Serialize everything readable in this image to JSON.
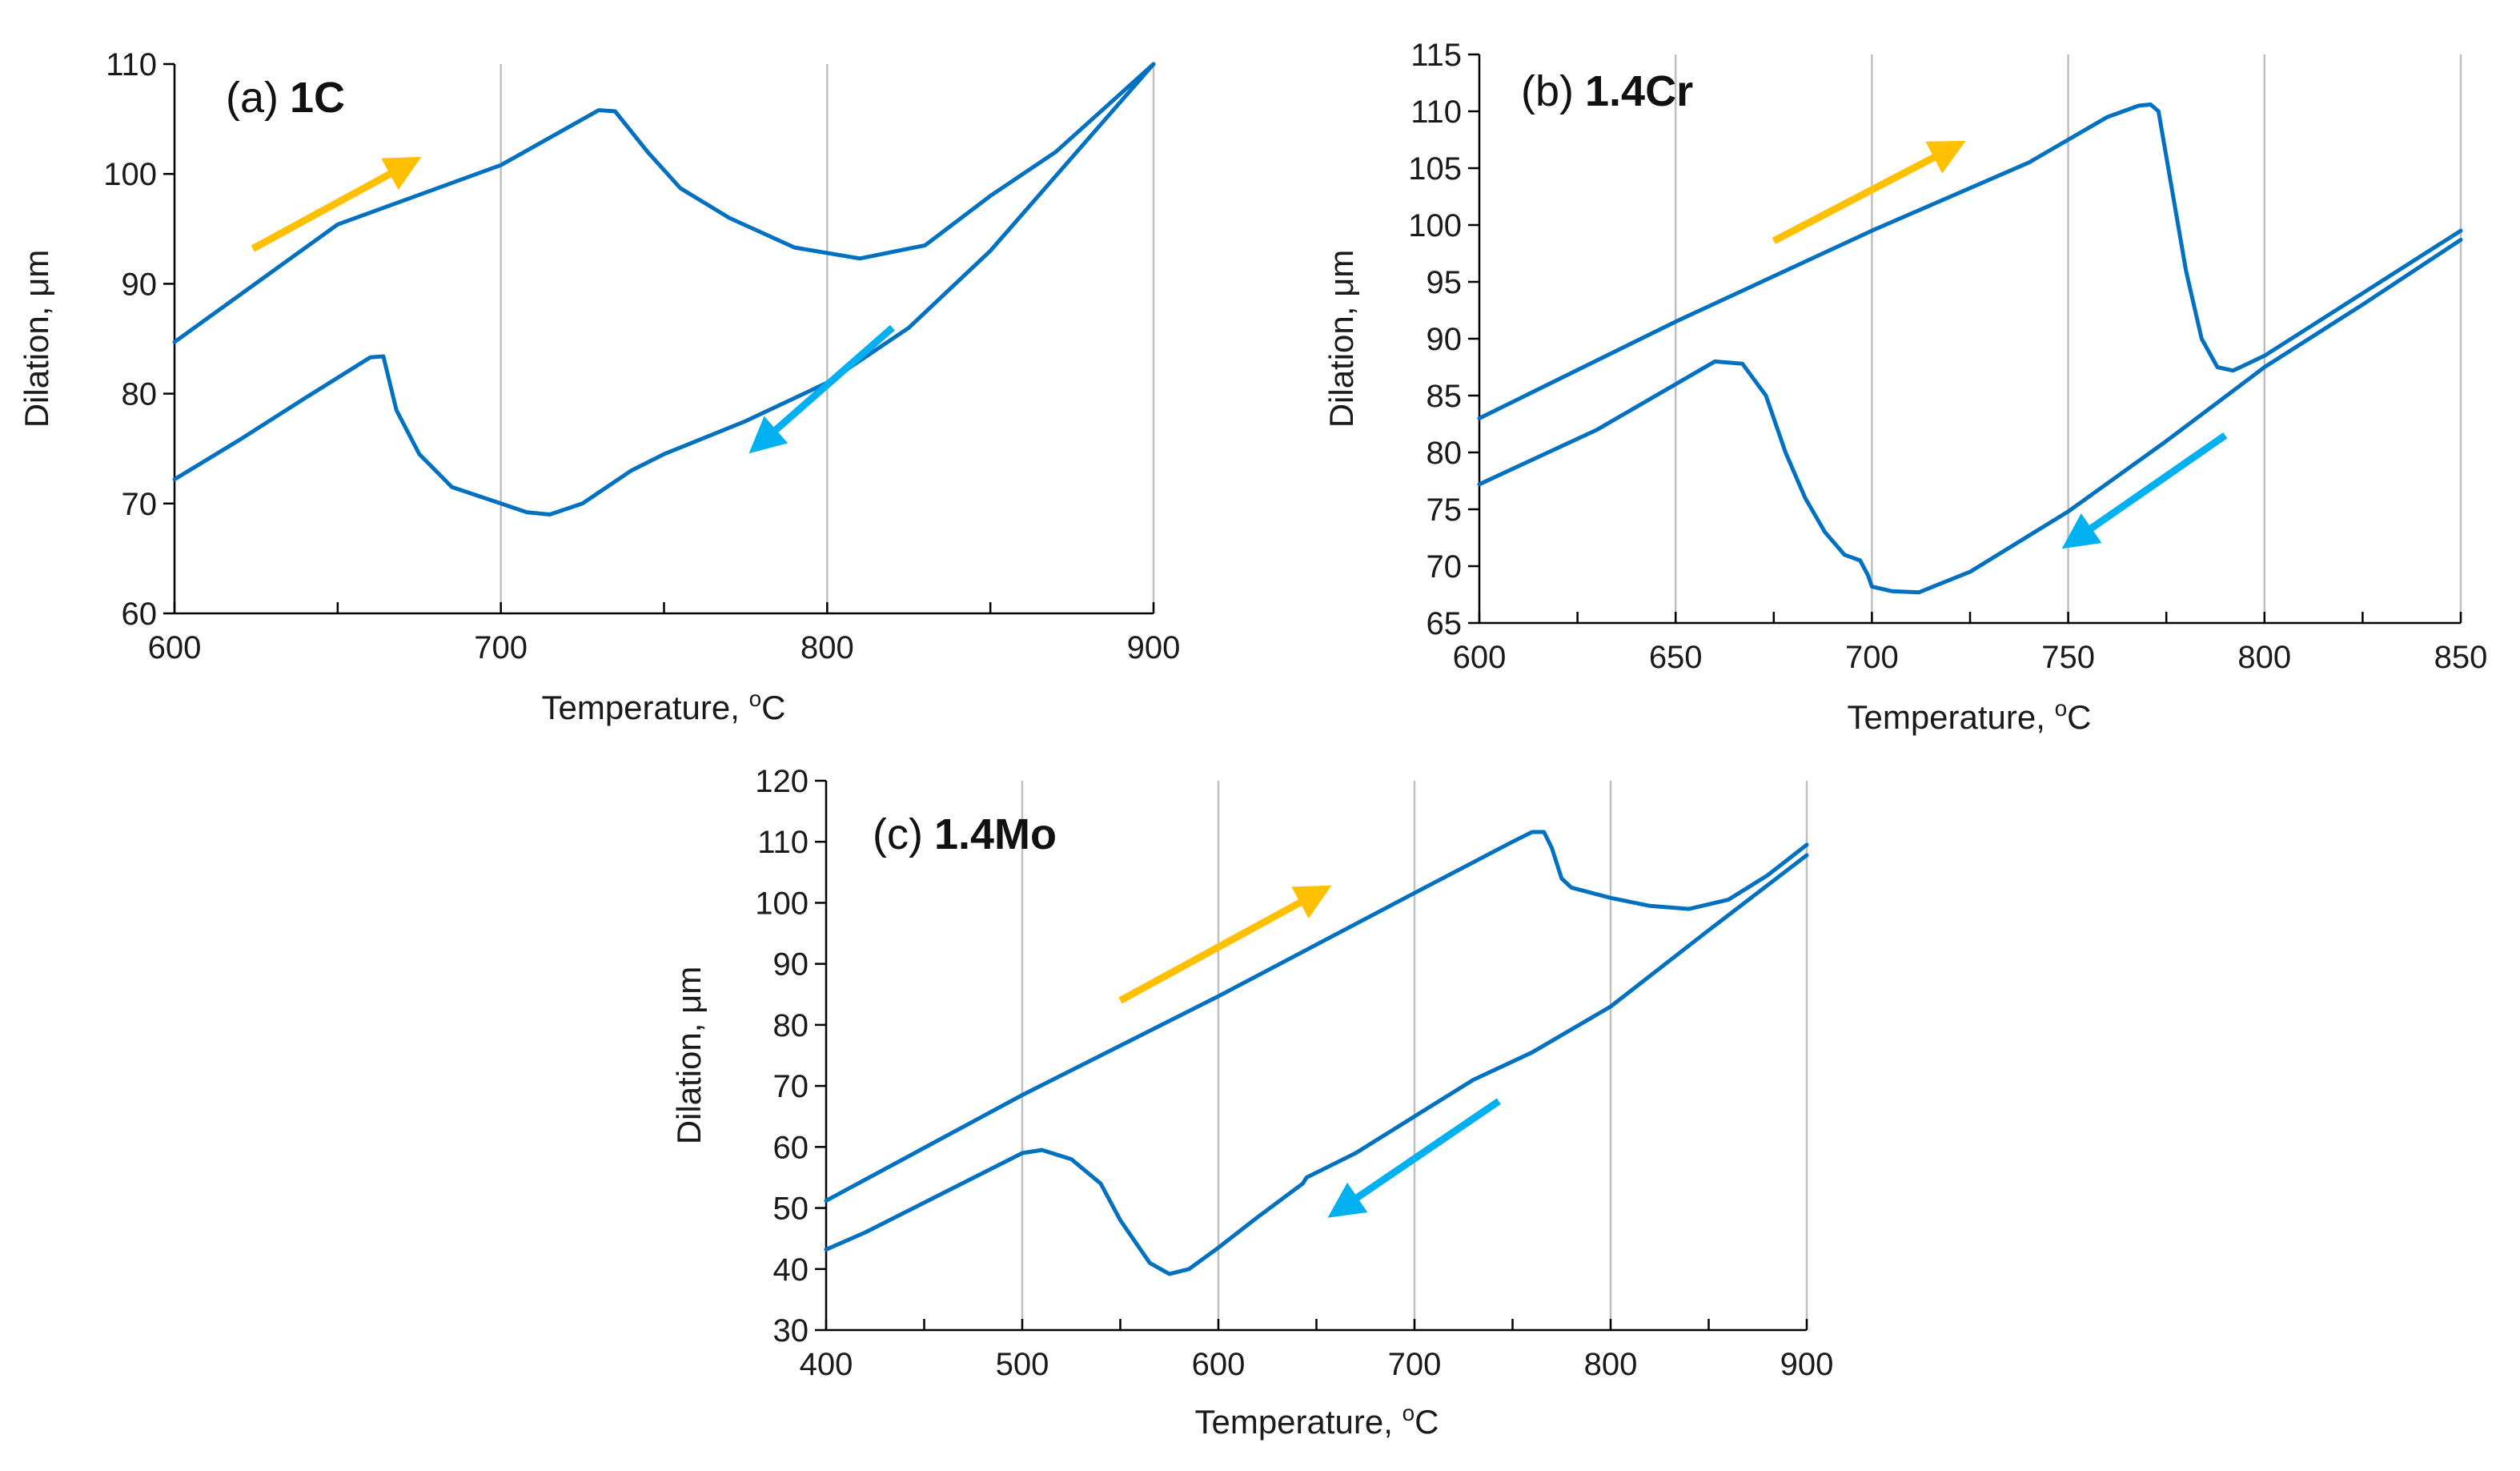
{
  "colors": {
    "curve": "#0070C0",
    "heating_arrow": "#FFC000",
    "cooling_arrow": "#00B0F0",
    "gridline": "#BFBFBF",
    "axis": "#000000"
  },
  "chart_data": [
    {
      "id": "a",
      "type": "line",
      "title_tag": "(a)",
      "title_name": "1C",
      "xlabel": "Temperature, ",
      "xlabel_sup": "o",
      "xlabel_unit": "C",
      "ylabel": "Dilation, μm",
      "xlim": [
        600,
        900
      ],
      "ylim": [
        60,
        110
      ],
      "xticks": [
        600,
        700,
        800,
        900
      ],
      "yticks": [
        60,
        70,
        80,
        90,
        100,
        110
      ],
      "xminor_step": 50,
      "grid_x": [
        700,
        800,
        900
      ],
      "series": [
        {
          "name": "heating",
          "points": [
            [
              600,
              84.7
            ],
            [
              650,
              95.4
            ],
            [
              700,
              100.8
            ],
            [
              730,
              105.8
            ],
            [
              735,
              105.7
            ],
            [
              745,
              102
            ],
            [
              755,
              98.7
            ],
            [
              770,
              96
            ],
            [
              790,
              93.3
            ],
            [
              810,
              92.3
            ],
            [
              830,
              93.5
            ],
            [
              850,
              98
            ],
            [
              870,
              102
            ],
            [
              900,
              110
            ]
          ]
        },
        {
          "name": "cooling",
          "points": [
            [
              900,
              110
            ],
            [
              875,
              101.5
            ],
            [
              850,
              93
            ],
            [
              825,
              86
            ],
            [
              800,
              81
            ],
            [
              775,
              77.5
            ],
            [
              750,
              74.5
            ],
            [
              740,
              73
            ],
            [
              725,
              70
            ],
            [
              715,
              69
            ],
            [
              708,
              69.2
            ],
            [
              700,
              70
            ],
            [
              685,
              71.5
            ],
            [
              675,
              74.5
            ],
            [
              668,
              78.5
            ],
            [
              664,
              83.4
            ],
            [
              660,
              83.3
            ],
            [
              640,
              79.6
            ],
            [
              620,
              75.8
            ],
            [
              600,
              72.2
            ]
          ]
        }
      ],
      "arrows": [
        {
          "kind": "heating",
          "from": [
            624,
            93.2
          ],
          "to": [
            671,
            100.8
          ]
        },
        {
          "kind": "cooling",
          "from": [
            820,
            86
          ],
          "to": [
            780,
            75.6
          ]
        }
      ]
    },
    {
      "id": "b",
      "type": "line",
      "title_tag": "(b)",
      "title_name": "1.4Cr",
      "xlabel": "Temperature, ",
      "xlabel_sup": "o",
      "xlabel_unit": "C",
      "ylabel": "Dilation, μm",
      "xlim": [
        600,
        850
      ],
      "ylim": [
        65,
        115
      ],
      "xticks": [
        600,
        650,
        700,
        750,
        800,
        850
      ],
      "yticks": [
        65,
        70,
        75,
        80,
        85,
        90,
        95,
        100,
        105,
        110,
        115
      ],
      "xminor_step": 25,
      "grid_x": [
        650,
        700,
        750,
        800,
        850
      ],
      "series": [
        {
          "name": "heating",
          "points": [
            [
              600,
              83
            ],
            [
              650,
              91.5
            ],
            [
              700,
              99.5
            ],
            [
              740,
              105.5
            ],
            [
              760,
              109.5
            ],
            [
              768,
              110.5
            ],
            [
              771,
              110.6
            ],
            [
              773,
              110
            ],
            [
              776,
              104
            ],
            [
              780,
              96
            ],
            [
              784,
              90
            ],
            [
              788,
              87.5
            ],
            [
              792,
              87.2
            ],
            [
              800,
              88.5
            ],
            [
              825,
              94
            ],
            [
              850,
              99.5
            ]
          ]
        },
        {
          "name": "cooling",
          "points": [
            [
              850,
              98.7
            ],
            [
              825,
              93
            ],
            [
              800,
              87.5
            ],
            [
              775,
              81
            ],
            [
              750,
              74.8
            ],
            [
              725,
              69.5
            ],
            [
              712,
              67.7
            ],
            [
              705,
              67.8
            ],
            [
              700,
              68.2
            ],
            [
              699,
              69.2
            ],
            [
              697,
              70.5
            ],
            [
              693,
              71
            ],
            [
              688,
              73
            ],
            [
              683,
              76
            ],
            [
              678,
              80
            ],
            [
              673,
              85
            ],
            [
              667,
              87.8
            ],
            [
              660,
              88
            ],
            [
              650,
              86
            ],
            [
              630,
              82
            ],
            [
              600,
              77.2
            ]
          ]
        }
      ],
      "arrows": [
        {
          "kind": "heating",
          "from": [
            675,
            98.6
          ],
          "to": [
            720,
            106.7
          ]
        },
        {
          "kind": "cooling",
          "from": [
            790,
            81.5
          ],
          "to": [
            752,
            72.4
          ]
        }
      ]
    },
    {
      "id": "c",
      "type": "line",
      "title_tag": "(c)",
      "title_name": "1.4Mo",
      "xlabel": "Temperature, ",
      "xlabel_sup": "o",
      "xlabel_unit": "C",
      "ylabel": "Dilation, μm",
      "xlim": [
        400,
        900
      ],
      "ylim": [
        30,
        120
      ],
      "xticks": [
        400,
        500,
        600,
        700,
        800,
        900
      ],
      "yticks": [
        30,
        40,
        50,
        60,
        70,
        80,
        90,
        100,
        110,
        120
      ],
      "xminor_step": 50,
      "grid_x": [
        500,
        600,
        700,
        800,
        900
      ],
      "series": [
        {
          "name": "heating",
          "points": [
            [
              400,
              51.2
            ],
            [
              500,
              68.5
            ],
            [
              600,
              84.7
            ],
            [
              700,
              101.6
            ],
            [
              750,
              110
            ],
            [
              760,
              111.6
            ],
            [
              766,
              111.6
            ],
            [
              770,
              109
            ],
            [
              775,
              104
            ],
            [
              780,
              102.5
            ],
            [
              800,
              100.8
            ],
            [
              820,
              99.5
            ],
            [
              840,
              99
            ],
            [
              860,
              100.5
            ],
            [
              880,
              104.5
            ],
            [
              900,
              109.5
            ]
          ]
        },
        {
          "name": "cooling",
          "points": [
            [
              900,
              107.8
            ],
            [
              850,
              95.5
            ],
            [
              800,
              83
            ],
            [
              760,
              75.5
            ],
            [
              730,
              71
            ],
            [
              700,
              65
            ],
            [
              670,
              59
            ],
            [
              645,
              55
            ],
            [
              643,
              54
            ],
            [
              620,
              48.5
            ],
            [
              600,
              43.5
            ],
            [
              585,
              40
            ],
            [
              575,
              39.2
            ],
            [
              565,
              41
            ],
            [
              550,
              48
            ],
            [
              540,
              54
            ],
            [
              525,
              58
            ],
            [
              510,
              59.5
            ],
            [
              500,
              59
            ],
            [
              460,
              52.5
            ],
            [
              420,
              46
            ],
            [
              400,
              43.2
            ]
          ]
        }
      ],
      "arrows": [
        {
          "kind": "heating",
          "from": [
            550,
            84
          ],
          "to": [
            650,
            101.5
          ]
        },
        {
          "kind": "cooling",
          "from": [
            743,
            67.5
          ],
          "to": [
            663,
            50
          ]
        }
      ]
    }
  ]
}
